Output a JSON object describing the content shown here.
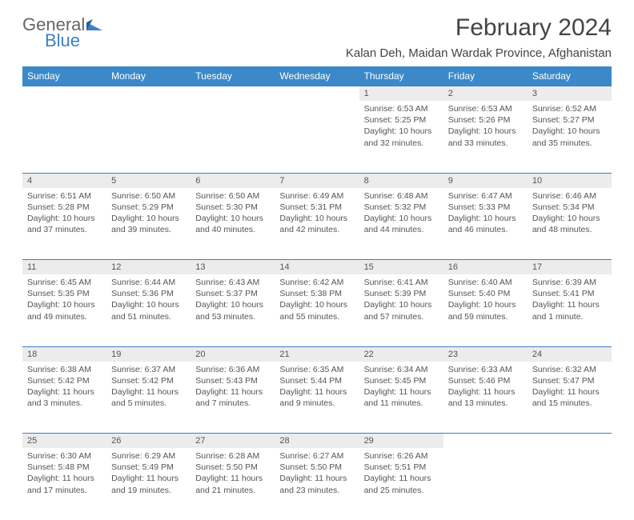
{
  "logo": {
    "general": "General",
    "blue": "Blue"
  },
  "title": "February 2024",
  "location": "Kalan Deh, Maidan Wardak Province, Afghanistan",
  "dayNames": [
    "Sunday",
    "Monday",
    "Tuesday",
    "Wednesday",
    "Thursday",
    "Friday",
    "Saturday"
  ],
  "colors": {
    "headerBg": "#3b89c9",
    "ruleColor": "#3b7fc4",
    "dayNumBg": "#ececec",
    "text": "#555555"
  },
  "grid": [
    [
      null,
      null,
      null,
      null,
      {
        "n": "1",
        "sr": "6:53 AM",
        "ss": "5:25 PM",
        "dl": "10 hours and 32 minutes."
      },
      {
        "n": "2",
        "sr": "6:53 AM",
        "ss": "5:26 PM",
        "dl": "10 hours and 33 minutes."
      },
      {
        "n": "3",
        "sr": "6:52 AM",
        "ss": "5:27 PM",
        "dl": "10 hours and 35 minutes."
      }
    ],
    [
      {
        "n": "4",
        "sr": "6:51 AM",
        "ss": "5:28 PM",
        "dl": "10 hours and 37 minutes."
      },
      {
        "n": "5",
        "sr": "6:50 AM",
        "ss": "5:29 PM",
        "dl": "10 hours and 39 minutes."
      },
      {
        "n": "6",
        "sr": "6:50 AM",
        "ss": "5:30 PM",
        "dl": "10 hours and 40 minutes."
      },
      {
        "n": "7",
        "sr": "6:49 AM",
        "ss": "5:31 PM",
        "dl": "10 hours and 42 minutes."
      },
      {
        "n": "8",
        "sr": "6:48 AM",
        "ss": "5:32 PM",
        "dl": "10 hours and 44 minutes."
      },
      {
        "n": "9",
        "sr": "6:47 AM",
        "ss": "5:33 PM",
        "dl": "10 hours and 46 minutes."
      },
      {
        "n": "10",
        "sr": "6:46 AM",
        "ss": "5:34 PM",
        "dl": "10 hours and 48 minutes."
      }
    ],
    [
      {
        "n": "11",
        "sr": "6:45 AM",
        "ss": "5:35 PM",
        "dl": "10 hours and 49 minutes."
      },
      {
        "n": "12",
        "sr": "6:44 AM",
        "ss": "5:36 PM",
        "dl": "10 hours and 51 minutes."
      },
      {
        "n": "13",
        "sr": "6:43 AM",
        "ss": "5:37 PM",
        "dl": "10 hours and 53 minutes."
      },
      {
        "n": "14",
        "sr": "6:42 AM",
        "ss": "5:38 PM",
        "dl": "10 hours and 55 minutes."
      },
      {
        "n": "15",
        "sr": "6:41 AM",
        "ss": "5:39 PM",
        "dl": "10 hours and 57 minutes."
      },
      {
        "n": "16",
        "sr": "6:40 AM",
        "ss": "5:40 PM",
        "dl": "10 hours and 59 minutes."
      },
      {
        "n": "17",
        "sr": "6:39 AM",
        "ss": "5:41 PM",
        "dl": "11 hours and 1 minute."
      }
    ],
    [
      {
        "n": "18",
        "sr": "6:38 AM",
        "ss": "5:42 PM",
        "dl": "11 hours and 3 minutes."
      },
      {
        "n": "19",
        "sr": "6:37 AM",
        "ss": "5:42 PM",
        "dl": "11 hours and 5 minutes."
      },
      {
        "n": "20",
        "sr": "6:36 AM",
        "ss": "5:43 PM",
        "dl": "11 hours and 7 minutes."
      },
      {
        "n": "21",
        "sr": "6:35 AM",
        "ss": "5:44 PM",
        "dl": "11 hours and 9 minutes."
      },
      {
        "n": "22",
        "sr": "6:34 AM",
        "ss": "5:45 PM",
        "dl": "11 hours and 11 minutes."
      },
      {
        "n": "23",
        "sr": "6:33 AM",
        "ss": "5:46 PM",
        "dl": "11 hours and 13 minutes."
      },
      {
        "n": "24",
        "sr": "6:32 AM",
        "ss": "5:47 PM",
        "dl": "11 hours and 15 minutes."
      }
    ],
    [
      {
        "n": "25",
        "sr": "6:30 AM",
        "ss": "5:48 PM",
        "dl": "11 hours and 17 minutes."
      },
      {
        "n": "26",
        "sr": "6:29 AM",
        "ss": "5:49 PM",
        "dl": "11 hours and 19 minutes."
      },
      {
        "n": "27",
        "sr": "6:28 AM",
        "ss": "5:50 PM",
        "dl": "11 hours and 21 minutes."
      },
      {
        "n": "28",
        "sr": "6:27 AM",
        "ss": "5:50 PM",
        "dl": "11 hours and 23 minutes."
      },
      {
        "n": "29",
        "sr": "6:26 AM",
        "ss": "5:51 PM",
        "dl": "11 hours and 25 minutes."
      },
      null,
      null
    ]
  ],
  "labels": {
    "sunrise": "Sunrise:",
    "sunset": "Sunset:",
    "daylight": "Daylight:"
  }
}
